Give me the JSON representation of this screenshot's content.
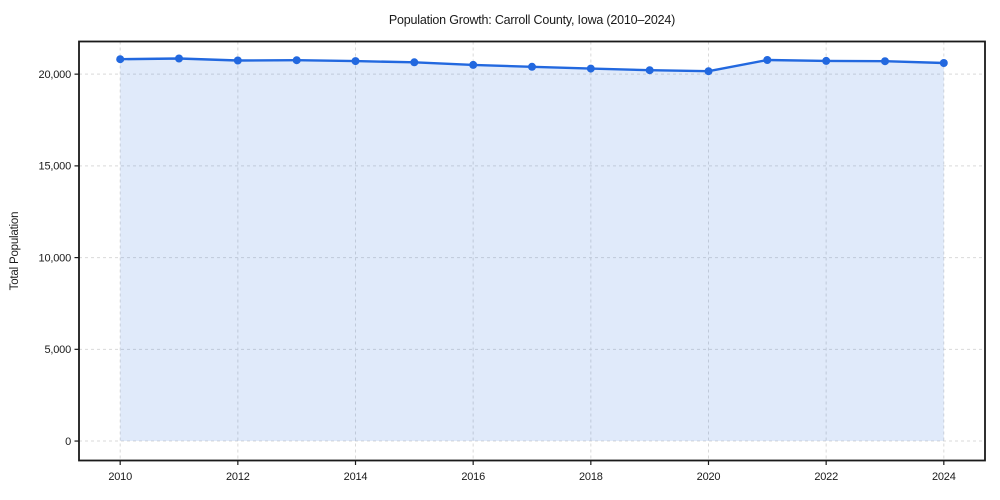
{
  "chart_data": {
    "type": "line",
    "title": "Population Growth: Carroll County, Iowa (2010–2024)",
    "xlabel": "",
    "ylabel": "Total Population",
    "x": [
      2010,
      2011,
      2012,
      2013,
      2014,
      2015,
      2016,
      2017,
      2018,
      2019,
      2020,
      2021,
      2022,
      2023,
      2024
    ],
    "series": [
      {
        "name": "Total Population",
        "values": [
          20815,
          20855,
          20745,
          20760,
          20710,
          20645,
          20505,
          20400,
          20305,
          20215,
          20160,
          20770,
          20720,
          20705,
          20610
        ]
      }
    ],
    "x_ticks": [
      2010,
      2012,
      2014,
      2016,
      2018,
      2020,
      2022,
      2024
    ],
    "y_ticks": [
      0,
      5000,
      10000,
      15000,
      20000
    ],
    "y_tick_labels": [
      "0",
      "5,000",
      "10,000",
      "15,000",
      "20,000"
    ],
    "xlim": [
      2009.3,
      2024.7
    ],
    "ylim": [
      -1060,
      21780
    ],
    "grid": true,
    "grid_style": "dashed",
    "legend": false,
    "area_fill": true,
    "marker": "circle",
    "colors": {
      "line": "#2268df",
      "marker": "#2268df",
      "fill": "rgba(34,104,223,0.14)",
      "grid": "#d9d9d9",
      "axis": "#1a1a1a",
      "text": "#1a1a1a",
      "background": "#ffffff"
    }
  }
}
